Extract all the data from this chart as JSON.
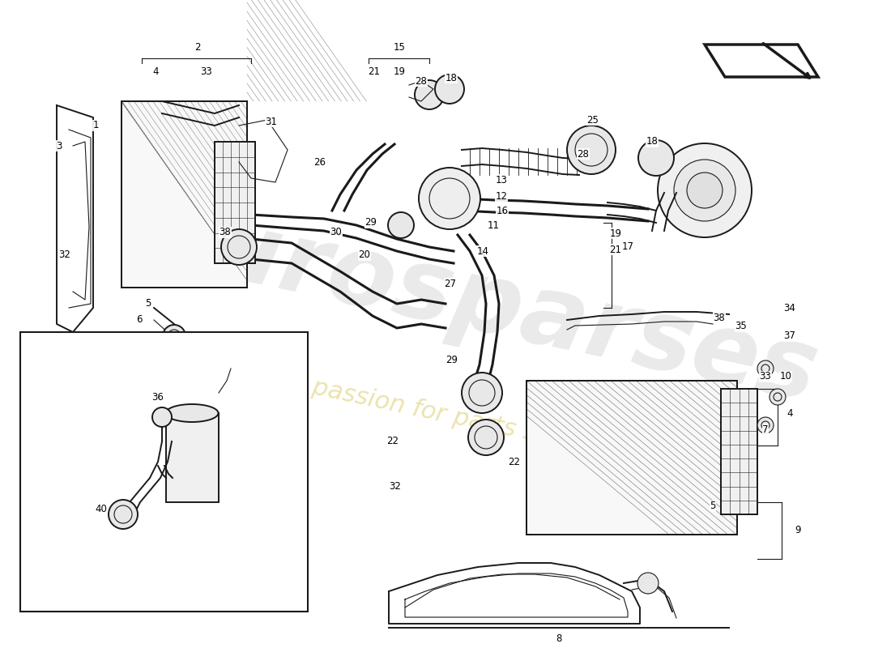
{
  "bg_color": "#ffffff",
  "line_color": "#1a1a1a",
  "wm_color1": "#d0d0d0",
  "wm_color2": "#e8dfa0",
  "lw_heavy": 2.2,
  "lw_med": 1.4,
  "lw_thin": 0.8,
  "lw_xtra": 0.5,
  "label_fs": 8.5
}
